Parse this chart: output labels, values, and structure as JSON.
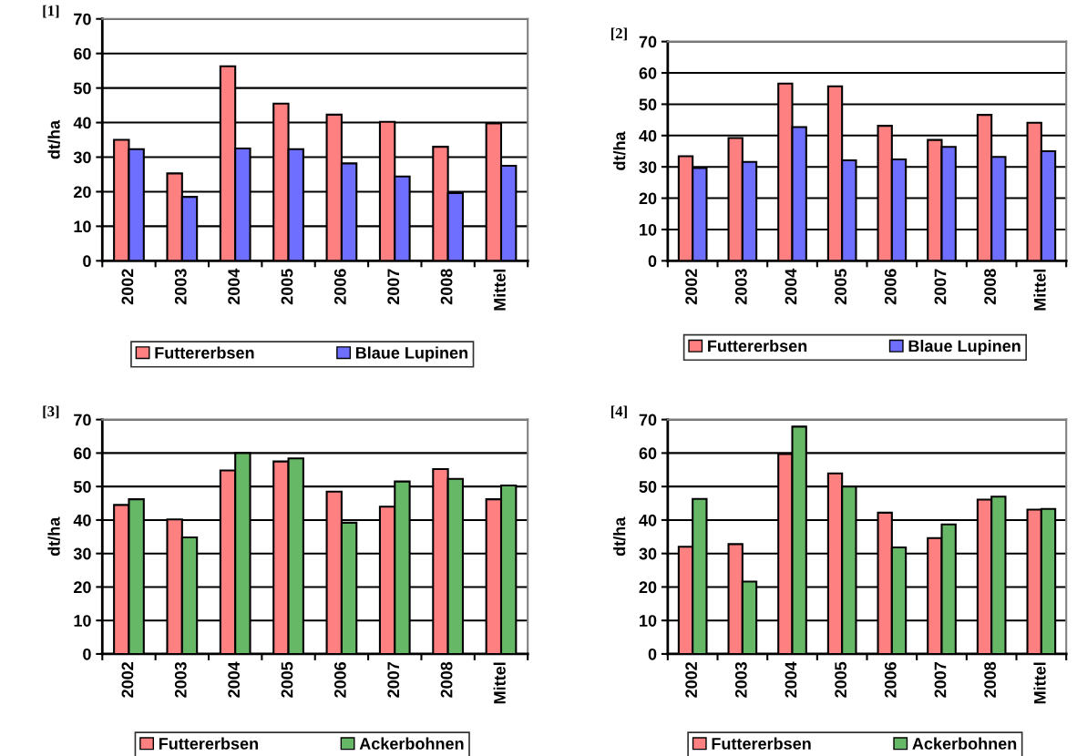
{
  "chart_data": [
    {
      "type": "bar",
      "annotations": [
        "[1]"
      ],
      "ylabel": "dt/ha",
      "categories": [
        "2002",
        "2003",
        "2004",
        "2005",
        "2006",
        "2007",
        "2008",
        "Mittel"
      ],
      "ylim": [
        0,
        70
      ],
      "yticks": [
        0,
        10,
        20,
        30,
        40,
        50,
        60,
        70
      ],
      "grid": "y",
      "legend": "bottom",
      "series": [
        {
          "name": "Futtererbsen",
          "color": "#ff8080",
          "values": [
            35,
            25.3,
            56.3,
            45.5,
            42.3,
            40.2,
            33,
            39.8
          ]
        },
        {
          "name": "Blaue Lupinen",
          "color": "#6f6fff",
          "values": [
            32.3,
            18.5,
            32.5,
            32.3,
            28.2,
            24.4,
            19.6,
            27.5
          ]
        }
      ]
    },
    {
      "type": "bar",
      "annotations": [
        "[2]"
      ],
      "ylabel": "dt/ha",
      "categories": [
        "2002",
        "2003",
        "2004",
        "2005",
        "2006",
        "2007",
        "2008",
        "Mittel"
      ],
      "ylim": [
        0,
        70
      ],
      "yticks": [
        0,
        10,
        20,
        30,
        40,
        50,
        60,
        70
      ],
      "grid": "y",
      "legend": "bottom",
      "series": [
        {
          "name": "Futtererbsen",
          "color": "#ff8080",
          "values": [
            33.4,
            39.2,
            56.6,
            55.7,
            43.1,
            38.6,
            46.6,
            44.1
          ]
        },
        {
          "name": "Blaue Lupinen",
          "color": "#6f6fff",
          "values": [
            29.6,
            31.6,
            42.7,
            32.1,
            32.4,
            36.4,
            33.2,
            35
          ]
        }
      ]
    },
    {
      "type": "bar",
      "annotations": [
        "[3]"
      ],
      "ylabel": "dt/ha",
      "categories": [
        "2002",
        "2003",
        "2004",
        "2005",
        "2006",
        "2007",
        "2008",
        "Mittel"
      ],
      "ylim": [
        0,
        70
      ],
      "yticks": [
        0,
        10,
        20,
        30,
        40,
        50,
        60,
        70
      ],
      "grid": "y",
      "legend": "bottom",
      "series": [
        {
          "name": "Futtererbsen",
          "color": "#ff8080",
          "values": [
            44.5,
            40.2,
            54.8,
            57.5,
            48.5,
            44,
            55.2,
            46.2
          ]
        },
        {
          "name": "Ackerbohnen",
          "color": "#66b866",
          "values": [
            46.2,
            34.8,
            60,
            58.4,
            39.2,
            51.5,
            52.3,
            50.3
          ]
        }
      ]
    },
    {
      "type": "bar",
      "annotations": [
        "[4]"
      ],
      "ylabel": "dt/ha",
      "categories": [
        "2002",
        "2003",
        "2004",
        "2005",
        "2006",
        "2007",
        "2008",
        "Mittel"
      ],
      "ylim": [
        0,
        70
      ],
      "yticks": [
        0,
        10,
        20,
        30,
        40,
        50,
        60,
        70
      ],
      "grid": "y",
      "legend": "bottom",
      "series": [
        {
          "name": "Futtererbsen",
          "color": "#ff8080",
          "values": [
            32,
            32.8,
            59.7,
            53.9,
            42.2,
            34.6,
            46.1,
            43.1
          ]
        },
        {
          "name": "Ackerbohnen",
          "color": "#66b866",
          "values": [
            46.3,
            21.6,
            67.9,
            50,
            31.8,
            38.7,
            47,
            43.3
          ]
        }
      ]
    }
  ]
}
